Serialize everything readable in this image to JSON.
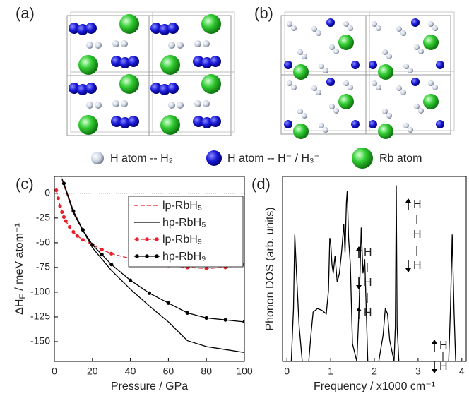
{
  "panels": [
    "(a)",
    "(b)",
    "(c)",
    "(d)"
  ],
  "structure_legend": [
    "H atom -- H₂",
    "H atom -- H⁻ / H₃⁻",
    "Rb atom"
  ],
  "chart_data": [
    {
      "type": "line",
      "xlabel": "Pressure / GPa",
      "ylabel_parts": [
        "ΔH",
        "F",
        " / meV atom⁻¹"
      ],
      "xlim": [
        0,
        100
      ],
      "ylim": [
        -170,
        17
      ],
      "xticks": [
        0,
        20,
        40,
        60,
        80,
        100
      ],
      "yticks": [
        0,
        -25,
        -50,
        -75,
        -100,
        -125,
        -150
      ],
      "hline": 0,
      "series": [
        {
          "name": "lp-RbH₅",
          "color": "#e8202a",
          "dash": true,
          "markers": false,
          "x": [
            3,
            5,
            10,
            15,
            20
          ],
          "values": [
            20,
            8,
            -20,
            -38,
            -52
          ]
        },
        {
          "name": "hp-RbH₅",
          "color": "#000000",
          "dash": false,
          "markers": false,
          "x": [
            4,
            10,
            20,
            30,
            40,
            50,
            60,
            70,
            80,
            90,
            100
          ],
          "values": [
            15,
            -20,
            -55,
            -78,
            -97,
            -114,
            -130,
            -149,
            -155,
            -158,
            -161
          ]
        },
        {
          "name": "lp-RbH₉",
          "color": "#e8202a",
          "dash": true,
          "markers": true,
          "x": [
            1,
            2,
            3,
            4,
            5,
            6,
            8,
            10,
            12,
            15,
            20,
            25,
            30,
            40,
            50,
            60,
            70,
            80,
            90,
            100
          ],
          "values": [
            3,
            -5,
            -13,
            -19,
            -24,
            -28,
            -34,
            -39,
            -43,
            -47,
            -52,
            -57,
            -61,
            -66,
            -70,
            -73,
            -75,
            -76,
            -75,
            -72
          ]
        },
        {
          "name": "hp-RbH₉",
          "color": "#000000",
          "dash": false,
          "markers": true,
          "x": [
            5,
            10,
            15,
            20,
            25,
            30,
            40,
            50,
            60,
            70,
            80,
            90,
            100
          ],
          "values": [
            10,
            -18,
            -37,
            -52,
            -62,
            -72,
            -88,
            -101,
            -111,
            -121,
            -126,
            -128,
            -130
          ]
        }
      ]
    },
    {
      "type": "line",
      "xlabel": "Frequency / x1000 cm⁻¹",
      "ylabel": "Phonon DOS (arb. units)",
      "xlim": [
        -0.1,
        4.1
      ],
      "ylim": [
        0,
        1.05
      ],
      "xticks": [
        0,
        1,
        2,
        3,
        4
      ],
      "annotations": [
        "H",
        "H",
        "H",
        "H",
        "H",
        "H",
        "H",
        "H"
      ],
      "series": [
        {
          "color": "#000000",
          "x": [
            0,
            0.1,
            0.15,
            0.18,
            0.22,
            0.28,
            0.35,
            0.5,
            0.55,
            0.6,
            0.7,
            0.8,
            0.9,
            0.95,
            0.98,
            1.0,
            1.03,
            1.06,
            1.1,
            1.15,
            1.2,
            1.25,
            1.3,
            1.33,
            1.36,
            1.38,
            1.41,
            1.45,
            1.5,
            1.6,
            1.65,
            1.7,
            1.74,
            1.78,
            1.85,
            2.1,
            2.2,
            2.25,
            2.3,
            2.35,
            2.45,
            2.48,
            2.5,
            2.52,
            2.56,
            2.7,
            3.7,
            3.74,
            3.78,
            3.82,
            3.86,
            4.0
          ],
          "values": [
            0,
            0,
            0.3,
            0.72,
            0.5,
            0.2,
            0,
            0,
            0.15,
            0.28,
            0.3,
            0.29,
            0.27,
            0.4,
            0.7,
            0.68,
            0.55,
            0.5,
            0.6,
            0.45,
            0.5,
            0.62,
            0.78,
            0.62,
            0.9,
            0.97,
            0.7,
            0.55,
            0.1,
            0,
            0.3,
            0.76,
            0.5,
            0.58,
            0,
            0,
            0.15,
            0.3,
            0.27,
            0.12,
            0,
            0.2,
            1.0,
            0.2,
            0,
            0,
            0,
            0.3,
            0.72,
            0.3,
            0,
            0
          ]
        }
      ]
    }
  ]
}
